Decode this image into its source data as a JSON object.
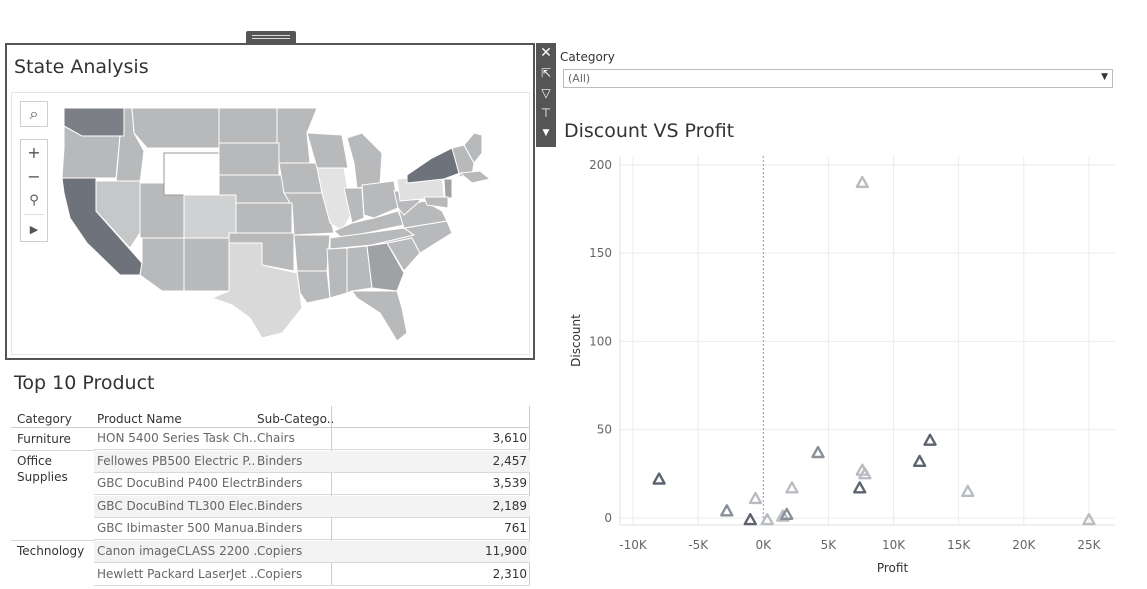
{
  "map_panel": {
    "title": "State Analysis",
    "tools": [
      "search-icon",
      "zoom-in-icon",
      "zoom-out-icon",
      "pin-icon",
      "expand-arrow-icon"
    ]
  },
  "side_toolbar": [
    "close-icon",
    "popout-icon",
    "filter-icon",
    "pin-icon",
    "more-options-icon"
  ],
  "category_filter": {
    "label": "Category",
    "value": "(All)"
  },
  "scatter": {
    "title": "Discount VS Profit"
  },
  "chart_data": {
    "type": "scatter",
    "title": "Discount VS Profit",
    "xlabel": "Profit",
    "ylabel": "Discount",
    "xlim": [
      -11000,
      27000
    ],
    "ylim": [
      -4,
      205
    ],
    "x_ticks": [
      -10000,
      -5000,
      0,
      5000,
      10000,
      15000,
      20000,
      25000
    ],
    "x_tick_labels": [
      "-10K",
      "-5K",
      "0K",
      "5K",
      "10K",
      "15K",
      "20K",
      "25K"
    ],
    "y_ticks": [
      0,
      50,
      100,
      150,
      200
    ],
    "y_tick_labels": [
      "0",
      "50",
      "100",
      "150",
      "200"
    ],
    "grid": true,
    "marker": "triangle",
    "points": [
      {
        "x": 7600,
        "y": 190,
        "shade": "light"
      },
      {
        "x": -8000,
        "y": 22,
        "shade": "dark"
      },
      {
        "x": -2800,
        "y": 4,
        "shade": "medium"
      },
      {
        "x": -1000,
        "y": -1,
        "shade": "dark"
      },
      {
        "x": 300,
        "y": -1,
        "shade": "light"
      },
      {
        "x": -600,
        "y": 11,
        "shade": "light"
      },
      {
        "x": 1500,
        "y": 1,
        "shade": "light"
      },
      {
        "x": 1800,
        "y": 2,
        "shade": "medium"
      },
      {
        "x": 2200,
        "y": 17,
        "shade": "light"
      },
      {
        "x": 4200,
        "y": 37,
        "shade": "medium"
      },
      {
        "x": 7400,
        "y": 17,
        "shade": "dark"
      },
      {
        "x": 7600,
        "y": 27,
        "shade": "light"
      },
      {
        "x": 7800,
        "y": 25,
        "shade": "light"
      },
      {
        "x": 12000,
        "y": 32,
        "shade": "dark"
      },
      {
        "x": 12800,
        "y": 44,
        "shade": "dark"
      },
      {
        "x": 15700,
        "y": 15,
        "shade": "light"
      },
      {
        "x": 25000,
        "y": -1,
        "shade": "light"
      }
    ]
  },
  "table": {
    "title": "Top 10  Product",
    "headers": {
      "category": "Category",
      "product": "Product Name",
      "subcat": "Sub-Catego.."
    },
    "categories": [
      "Furniture",
      "Office\nSupplies",
      "Technology"
    ],
    "rows": [
      {
        "product": "HON 5400 Series Task Ch..",
        "subcat": "Chairs",
        "value": "3,610"
      },
      {
        "product": "Fellowes PB500 Electric P..",
        "subcat": "Binders",
        "value": "2,457"
      },
      {
        "product": "GBC DocuBind P400 Electr..",
        "subcat": "Binders",
        "value": "3,539"
      },
      {
        "product": "GBC DocuBind TL300 Elec..",
        "subcat": "Binders",
        "value": "2,189"
      },
      {
        "product": "GBC Ibimaster 500 Manua..",
        "subcat": "Binders",
        "value": "761"
      },
      {
        "product": "Canon imageCLASS 2200 ..",
        "subcat": "Copiers",
        "value": "11,900"
      },
      {
        "product": "Hewlett Packard LaserJet ..",
        "subcat": "Copiers",
        "value": "2,310"
      }
    ]
  },
  "colors": {
    "dark": "#5d6470",
    "medium": "#8a9098",
    "light": "#b9bdc2",
    "map_fill": "#b8b9bb"
  }
}
